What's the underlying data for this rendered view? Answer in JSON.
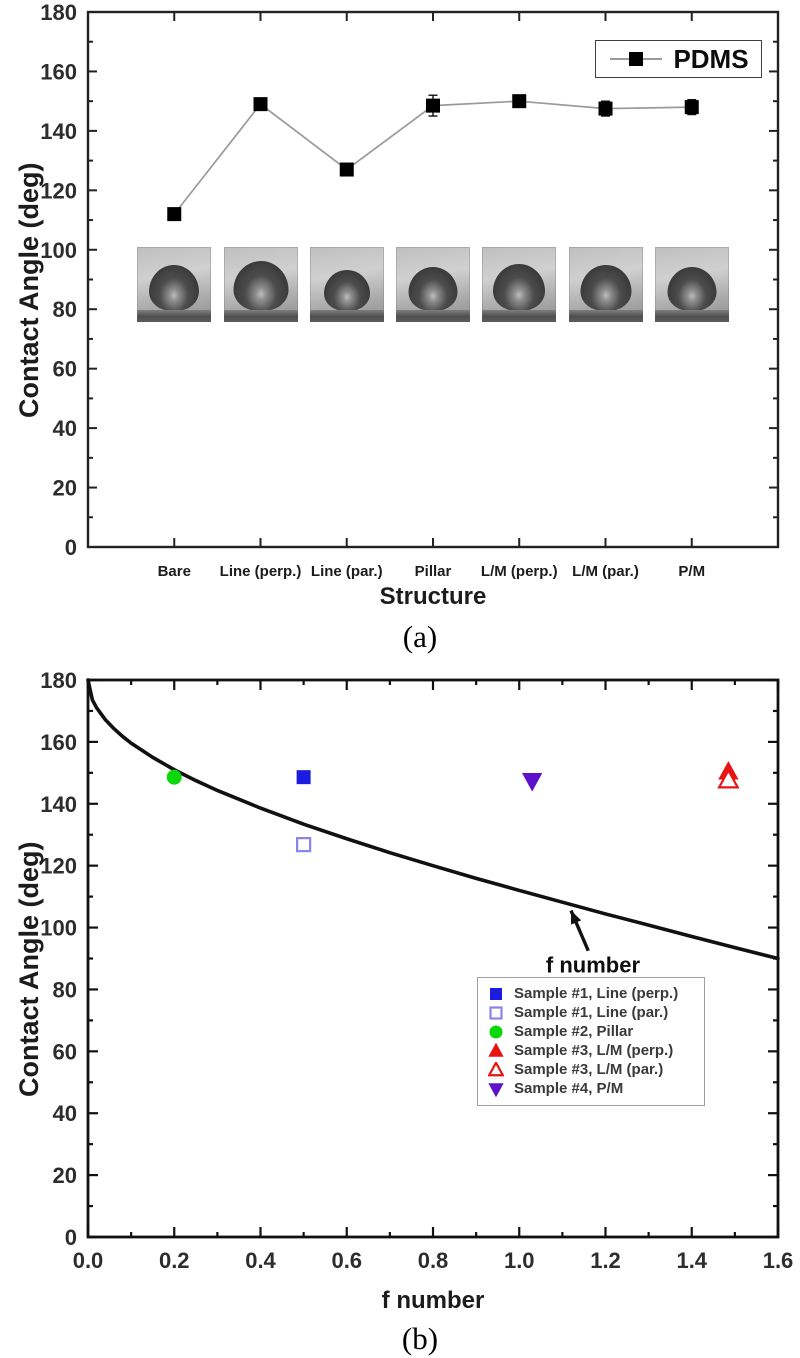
{
  "figure": {
    "caption_a": "(a)",
    "caption_b": "(b)"
  },
  "colors": {
    "axis": "#1a1a1a",
    "series_line_a": "#9a9a9a",
    "marker_black": "#000000",
    "blue_filled": "#1c1ce0",
    "blue_open": "#8585ec",
    "green": "#0cd60c",
    "red": "#e81414",
    "purple": "#5b11cc",
    "curve": "#111111"
  },
  "chart_data": [
    {
      "id": "a",
      "type": "line",
      "xlabel": "Structure",
      "ylabel": "Contact Angle (deg)",
      "ylim": [
        0,
        180
      ],
      "ytick_step": 20,
      "ytick_minor_step": 10,
      "categories": [
        "Bare",
        "Line (perp.)",
        "Line (par.)",
        "Pillar",
        "L/M (perp.)",
        "L/M (par.)",
        "P/M"
      ],
      "series": [
        {
          "name": "PDMS",
          "marker": "square",
          "marker_color": "#000000",
          "line_color": "#9a9a9a",
          "values": [
            112,
            149,
            127,
            148.5,
            150,
            147.5,
            148
          ],
          "errors": [
            1.5,
            0,
            0,
            3.5,
            1.5,
            2.5,
            2.5
          ]
        }
      ],
      "legend": {
        "position": "top-right",
        "entries": [
          {
            "label": "PDMS",
            "marker": "square",
            "color": "#000000"
          }
        ]
      },
      "insets": {
        "description": "grayscale water-droplet contact-angle photos, one per structure",
        "count": 7,
        "y_range_deg": [
          75,
          101
        ]
      }
    },
    {
      "id": "b",
      "type": "scatter",
      "xlabel": "f number",
      "ylabel": "Contact Angle (deg)",
      "xlim": [
        0,
        1.6
      ],
      "xtick_step": 0.2,
      "xtick_minor_step": 0.1,
      "ylim": [
        0,
        180
      ],
      "ytick_step": 20,
      "ytick_minor_step": 10,
      "curve": {
        "name": "f number",
        "points": [
          [
            0,
            180
          ],
          [
            0.01,
            173.6
          ],
          [
            0.02,
            171.0
          ],
          [
            0.04,
            167.2
          ],
          [
            0.06,
            164.3
          ],
          [
            0.08,
            161.8
          ],
          [
            0.1,
            159.6
          ],
          [
            0.15,
            155.0
          ],
          [
            0.2,
            151.0
          ],
          [
            0.25,
            147.5
          ],
          [
            0.3,
            144.3
          ],
          [
            0.4,
            138.6
          ],
          [
            0.5,
            133.4
          ],
          [
            0.6,
            128.7
          ],
          [
            0.7,
            124.2
          ],
          [
            0.8,
            120.0
          ],
          [
            0.9,
            115.9
          ],
          [
            1.0,
            112.0
          ],
          [
            1.1,
            108.2
          ],
          [
            1.2,
            104.4
          ],
          [
            1.3,
            100.8
          ],
          [
            1.4,
            97.1
          ],
          [
            1.5,
            93.5
          ],
          [
            1.6,
            90.0
          ]
        ]
      },
      "series": [
        {
          "name": "Sample #1, Line (perp.)",
          "marker": "square",
          "fill": "filled",
          "color": "#1c1ce0",
          "points": [
            [
              0.5,
              148.6
            ]
          ]
        },
        {
          "name": "Sample #1, Line (par.)",
          "marker": "square",
          "fill": "open",
          "color": "#8585ec",
          "points": [
            [
              0.5,
              126.8
            ]
          ]
        },
        {
          "name": "Sample #2, Pillar",
          "marker": "circle",
          "fill": "filled",
          "color": "#0cd60c",
          "points": [
            [
              0.2,
              148.6
            ]
          ]
        },
        {
          "name": "Sample #3, L/M (perp.)",
          "marker": "triangle-up",
          "fill": "filled",
          "color": "#e81414",
          "points": [
            [
              1.485,
              150.3
            ]
          ]
        },
        {
          "name": "Sample #3, L/M (par.)",
          "marker": "triangle-up",
          "fill": "open",
          "color": "#e81414",
          "points": [
            [
              1.485,
              147.6
            ]
          ]
        },
        {
          "name": "Sample #4, P/M",
          "marker": "triangle-down",
          "fill": "filled",
          "color": "#5b11cc",
          "points": [
            [
              1.03,
              147.5
            ]
          ]
        }
      ],
      "legend": {
        "position": "bottom-center"
      },
      "annotation": {
        "text": "f number",
        "text_pos": [
          1.171,
          88
        ],
        "arrow_from": [
          1.16,
          92.5
        ],
        "arrow_to": [
          1.12,
          105.5
        ]
      }
    }
  ]
}
